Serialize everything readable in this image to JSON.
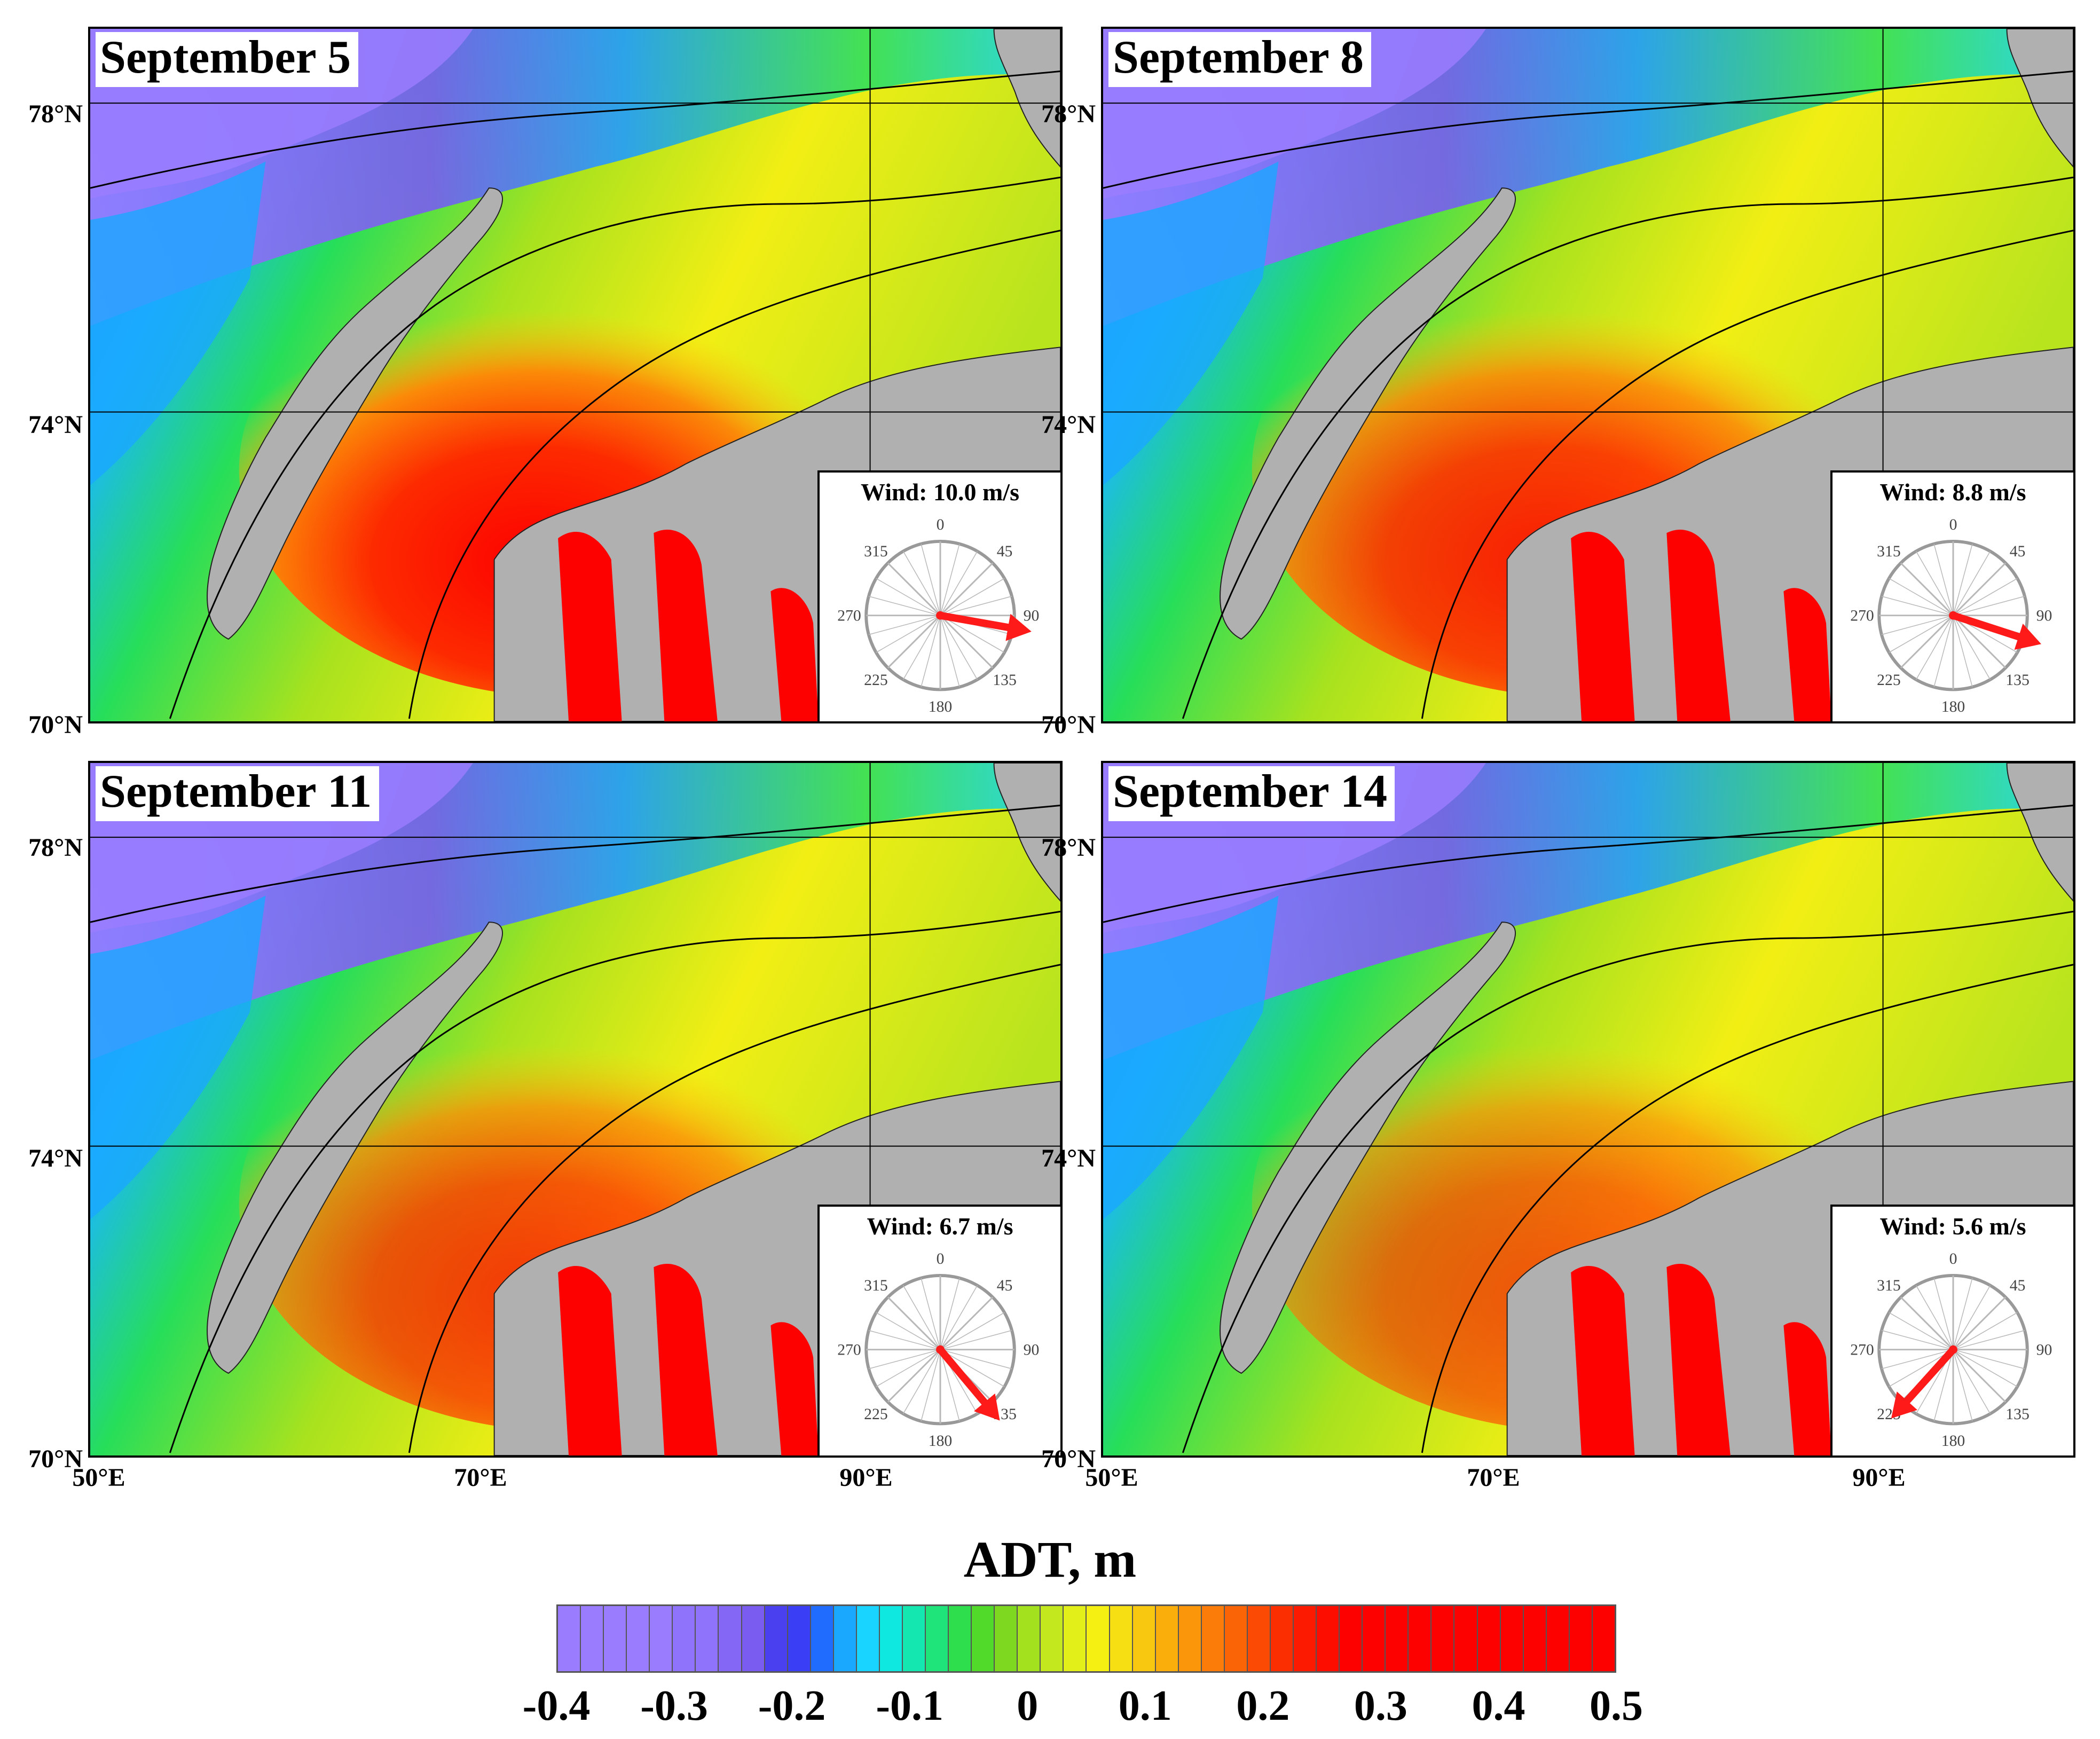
{
  "panels": [
    {
      "date": "September 5",
      "wind": "Wind: 10.0 m/s",
      "wind_dir_deg": 100
    },
    {
      "date": "September 8",
      "wind": "Wind: 8.8 m/s",
      "wind_dir_deg": 108
    },
    {
      "date": "September 11",
      "wind": "Wind: 6.7 m/s",
      "wind_dir_deg": 140
    },
    {
      "date": "September 14",
      "wind": "Wind: 5.6 m/s",
      "wind_dir_deg": 222
    }
  ],
  "lat_labels": [
    "78°N",
    "74°N",
    "70°N"
  ],
  "lon_labels": [
    "50°E",
    "70°E",
    "90°E"
  ],
  "compass_labels": [
    "0",
    "45",
    "90",
    "135",
    "180",
    "225",
    "270",
    "315"
  ],
  "colorbar": {
    "title": "ADT, m",
    "ticks": [
      "-0.4",
      "-0.3",
      "-0.2",
      "-0.1",
      "0",
      "0.1",
      "0.2",
      "0.3",
      "0.4",
      "0.5"
    ],
    "colors": [
      "#9a7dff",
      "#9a7dff",
      "#9a7dff",
      "#9a7dff",
      "#9a7dff",
      "#8f74fb",
      "#8f74fb",
      "#8467f5",
      "#7a5cf0",
      "#4b40f0",
      "#3a3ef5",
      "#1f6cff",
      "#1aa8ff",
      "#18d4ff",
      "#0fe8e0",
      "#14e8b0",
      "#1fe47a",
      "#2fde4c",
      "#52da2a",
      "#7ed820",
      "#a3e01e",
      "#c4e81e",
      "#e2ef18",
      "#f5f012",
      "#f6df12",
      "#f8c810",
      "#faae0c",
      "#fb960a",
      "#fb7c08",
      "#fb6406",
      "#fb4a04",
      "#fb2e02",
      "#fc1a00",
      "#fd0d00",
      "#fd0000",
      "#fd0000",
      "#fd0000",
      "#fd0000",
      "#fd0000",
      "#fd0000",
      "#fd0000",
      "#fd0000",
      "#fd0000",
      "#fd0000",
      "#fd0000",
      "#fd0000"
    ]
  }
}
